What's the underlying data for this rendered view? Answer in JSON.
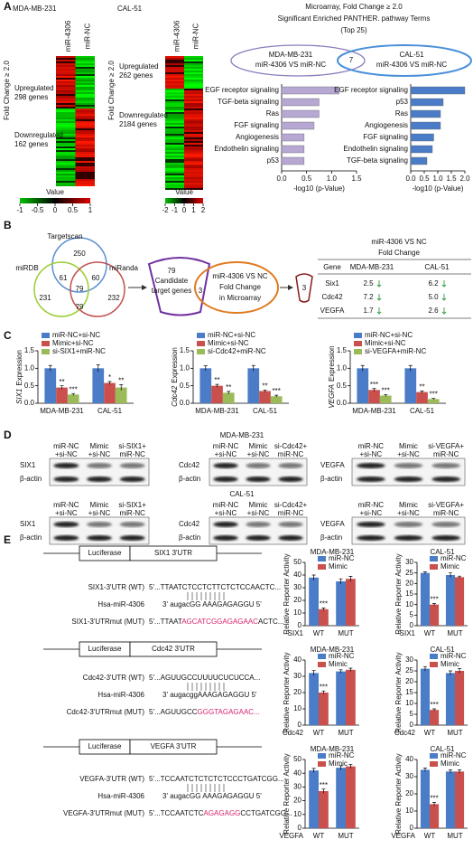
{
  "panel_labels": [
    "A",
    "B",
    "C",
    "D",
    "E"
  ],
  "heatmaps": [
    {
      "title": "MDA-MB-231",
      "side_label": "Fold Change ≥ 2.0",
      "columns": [
        "miR-4306",
        "miR-NC"
      ],
      "upregulated": [
        "Upregulated",
        "298 genes"
      ],
      "downregulated": [
        "Downregulated",
        "162 genes"
      ],
      "legend_title": "Value",
      "legend_ticks": [
        -1,
        -0.5,
        0,
        0.5,
        1
      ]
    },
    {
      "title": "CAL-51",
      "side_label": "Fold Change ≥ 2.0",
      "columns": [
        "miR-4306",
        "miR-NC"
      ],
      "upregulated": [
        "Upregulated",
        "262 genes"
      ],
      "downregulated": [
        "Downregulated",
        "2184 genes"
      ],
      "legend_title": "Value",
      "legend_ticks": [
        -2,
        -1,
        0,
        1,
        2
      ]
    }
  ],
  "pathway_header": [
    "Microarray, Fold Change ≥ 2.0",
    "Significant Enriched PANTHER. pathway Terms",
    "(Top 25)"
  ],
  "pathway_venn": {
    "left": [
      "MDA-MB-231",
      "miR-4306 VS miR-NC"
    ],
    "overlap": "7",
    "right": [
      "CAL-51",
      "miR-4306 VS miR-NC"
    ]
  },
  "target_venn": {
    "sets": [
      "Targetscan",
      "miRDB",
      "miRanda"
    ],
    "counts": [
      "250",
      "231",
      "232",
      "61",
      "60",
      "79",
      "79"
    ]
  },
  "flow": {
    "candidates": [
      "79",
      "Candidate",
      "target genes"
    ],
    "microarray": [
      "miR-4306 VS NC",
      "Fold Change",
      "in Microarray"
    ],
    "overlap": "3",
    "result": "3"
  },
  "table": {
    "header": "miR-4306 VS NC",
    "subheader": "Fold Change",
    "columns": [
      "Gene",
      "MDA-MB-231",
      "CAL-51"
    ],
    "rows": [
      [
        "Six1",
        "2.5",
        "6.2"
      ],
      [
        "Cdc42",
        "7.2",
        "5.0"
      ],
      [
        "VEGFA",
        "1.7",
        "2.6"
      ]
    ]
  },
  "blots": [
    {
      "title": "MDA-MB-231",
      "panels": [
        {
          "lanes": [
            [
              "miR-NC",
              "+si-NC"
            ],
            [
              "Mimic",
              "+si-NC"
            ],
            [
              "si-SIX1+",
              "miR-NC"
            ]
          ],
          "rows": [
            "SIX1",
            "β-actin"
          ]
        },
        {
          "lanes": [
            [
              "miR-NC",
              "+si-NC"
            ],
            [
              "Mimic",
              "+si-NC"
            ],
            [
              "si-Cdc42+",
              "miR-NC"
            ]
          ],
          "rows": [
            "Cdc42",
            "β-actin"
          ]
        },
        {
          "lanes": [
            [
              "miR-NC",
              "+si-NC"
            ],
            [
              "Mimic",
              "+si-NC"
            ],
            [
              "si-VEGFA+",
              "miR-NC"
            ]
          ],
          "rows": [
            "VEGFA",
            "β-actin"
          ]
        }
      ]
    },
    {
      "title": "CAL-51",
      "panels": [
        {
          "lanes": [
            [
              "miR-NC",
              "+si-NC"
            ],
            [
              "Mimic",
              "+si-NC"
            ],
            [
              "si-SIX1+",
              "miR-NC"
            ]
          ],
          "rows": [
            "SIX1",
            "β-actin"
          ]
        },
        {
          "lanes": [
            [
              "miR-NC",
              "+si-NC"
            ],
            [
              "Mimic",
              "+si-NC"
            ],
            [
              "si-Cdc42+",
              "miR-NC"
            ]
          ],
          "rows": [
            "Cdc42",
            "β-actin"
          ]
        },
        {
          "lanes": [
            [
              "miR-NC",
              "+si-NC"
            ],
            [
              "Mimic",
              "+si-NC"
            ],
            [
              "si-VEGFA+",
              "miR-NC"
            ]
          ],
          "rows": [
            "VEGFA",
            "β-actin"
          ]
        }
      ]
    }
  ],
  "reporters": [
    {
      "construct": [
        "Luciferase",
        "SIX1 3'UTR"
      ],
      "wt_name": "SIX1-3'UTR (WT)",
      "wt_seq": "5'...TTAATCTCCTCTTCTCTCCAACTC...",
      "mirna": "Hsa-miR-4306",
      "mirna_seq": "3' augacGG AAAGAGAGGU 5'",
      "mut_name": "SIX1-3'UTRmut (MUT)",
      "mut_seq": [
        "5'...TTAAT",
        "AGCATCGGAGAGAAC",
        "ACTC..."
      ]
    },
    {
      "construct": [
        "Luciferase",
        "Cdc42 3'UTR"
      ],
      "wt_name": "Cdc42-3'UTR (WT)",
      "wt_seq": "5'...AGUUGCCUUUUCUCUCCA...",
      "mirna": "Hsa-miR-4306",
      "mirna_seq": "3' augacggAAAGAGAGGU 5'",
      "mut_name": "Cdc42-3'UTRmut (MUT)",
      "mut_seq": [
        "5'...AGUUGCC",
        "GGGTAGAGAAC..."
      ]
    },
    {
      "construct": [
        "Luciferase",
        "VEGFA 3'UTR"
      ],
      "wt_name": "VEGFA-3'UTR (WT)",
      "wt_seq": "5'...TCCAATCTCTCTCTCCCTGATCGG...",
      "mirna": "Hsa-miR-4306",
      "mirna_seq": "3' augacGG AAAGAGAGGU 5'",
      "mut_name": "VEGFA-3'UTRmut (MUT)",
      "mut_seq": [
        "5'...TCCAATCTC",
        "AGAGAGG",
        "CCTGATCGG..."
      ]
    }
  ],
  "chart_data": [
    {
      "type": "hbar",
      "categories": [
        "EGF receptor signaling",
        "TGF-beta signaling",
        "Ras",
        "FGF signaling",
        "Angiogenesis",
        "Endothelin signaling",
        "p53"
      ],
      "values": [
        1.15,
        0.75,
        0.75,
        0.65,
        0.45,
        0.45,
        0.45
      ],
      "color": "#b6a7d3",
      "xlim": [
        0,
        1.5
      ],
      "xticks": [
        {
          "value": 0,
          "label": "0.0"
        },
        {
          "value": 0.5,
          "label": "0.5"
        },
        {
          "value": 1,
          "label": "1.0"
        },
        {
          "value": 1.5,
          "label": "1.5"
        }
      ],
      "xlabel": "-log10 (p-Value)"
    },
    {
      "type": "hbar",
      "categories": [
        "EGF receptor signaling",
        "p53",
        "Ras",
        "Angiogenesis",
        "FGF signaling",
        "Endothelin signaling",
        "TGF-beta signaling"
      ],
      "values": [
        2.0,
        1.2,
        1.1,
        1.1,
        0.85,
        0.8,
        0.6
      ],
      "color": "#4a7cc7",
      "xlim": [
        0,
        2
      ],
      "xticks": [
        {
          "value": 0,
          "label": "0.0"
        },
        {
          "value": 0.5,
          "label": "0.5"
        },
        {
          "value": 1,
          "label": "1.0"
        },
        {
          "value": 1.5,
          "label": "1.5"
        },
        {
          "value": 2,
          "label": "2.0"
        }
      ],
      "xlabel": "-log10 (p-Value)"
    },
    {
      "type": "bar",
      "ylabel": [
        "SIX1",
        "Expression"
      ],
      "categories": [
        "MDA-MB-231",
        "CAL-51"
      ],
      "ylim": [
        0,
        1.5
      ],
      "yticks": [
        {
          "value": 0,
          "label": "0.0"
        },
        {
          "value": 0.5,
          "label": "0.5"
        },
        {
          "value": 1,
          "label": "1.0"
        },
        {
          "value": 1.5,
          "label": "1.5"
        }
      ],
      "series": [
        {
          "name": "miR-NC+si-NC",
          "color": "#4a7cc7",
          "values": [
            1.0,
            1.0
          ],
          "errors": [
            0.08,
            0.1
          ]
        },
        {
          "name": "Mimic+si-NC",
          "color": "#c9504d",
          "values": [
            0.45,
            0.58
          ],
          "errors": [
            0.05,
            0.04
          ],
          "labels": [
            "**",
            "*"
          ]
        },
        {
          "name": "si-SIX1+miR-NC",
          "color": "#9bbb59",
          "values": [
            0.25,
            0.45
          ],
          "errors": [
            0.03,
            0.08
          ],
          "labels": [
            "***",
            "**"
          ]
        }
      ]
    },
    {
      "type": "bar",
      "ylabel": [
        "Cdc42",
        "Expression"
      ],
      "categories": [
        "MDA-MB-231",
        "CAL-51"
      ],
      "ylim": [
        0,
        1.5
      ],
      "yticks": [
        {
          "value": 0,
          "label": "0.0"
        },
        {
          "value": 0.5,
          "label": "0.5"
        },
        {
          "value": 1,
          "label": "1.0"
        },
        {
          "value": 1.5,
          "label": "1.5"
        }
      ],
      "series": [
        {
          "name": "miR-NC+si-NC",
          "color": "#4a7cc7",
          "values": [
            1.0,
            1.0
          ],
          "errors": [
            0.07,
            0.08
          ]
        },
        {
          "name": "Mimic+si-NC",
          "color": "#c9504d",
          "values": [
            0.5,
            0.35
          ],
          "errors": [
            0.04,
            0.03
          ],
          "labels": [
            "**",
            "**"
          ]
        },
        {
          "name": "si-Cdc42+miR-NC",
          "color": "#9bbb59",
          "values": [
            0.3,
            0.2
          ],
          "errors": [
            0.04,
            0.03
          ],
          "labels": [
            "**",
            "***"
          ]
        }
      ]
    },
    {
      "type": "bar",
      "ylabel": [
        "VEGFA",
        "Expression"
      ],
      "categories": [
        "MDA-MB-231",
        "CAL-51"
      ],
      "ylim": [
        0,
        1.5
      ],
      "yticks": [
        {
          "value": 0,
          "label": "0.0"
        },
        {
          "value": 0.5,
          "label": "0.5"
        },
        {
          "value": 1,
          "label": "1.0"
        },
        {
          "value": 1.5,
          "label": "1.5"
        }
      ],
      "series": [
        {
          "name": "miR-NC+si-NC",
          "color": "#4a7cc7",
          "values": [
            1.0,
            1.0
          ],
          "errors": [
            0.08,
            0.08
          ]
        },
        {
          "name": "Mimic+si-NC",
          "color": "#c9504d",
          "values": [
            0.38,
            0.32
          ],
          "errors": [
            0.04,
            0.03
          ],
          "labels": [
            "***",
            "**"
          ]
        },
        {
          "name": "si-VEGFA+miR-NC",
          "color": "#9bbb59",
          "values": [
            0.22,
            0.12
          ],
          "errors": [
            0.03,
            0.02
          ],
          "labels": [
            "***",
            "***"
          ]
        }
      ]
    },
    {
      "type": "bar",
      "title": "MDA-MB-231",
      "ylabel": [
        "Relative Reporter Activity"
      ],
      "gene": "SIX1",
      "categories": [
        "WT",
        "MUT"
      ],
      "ylim": [
        0,
        50
      ],
      "yticks": [
        0,
        10,
        20,
        30,
        40,
        50
      ],
      "series": [
        {
          "name": "miR-NC",
          "color": "#4a7cc7",
          "values": [
            38,
            35
          ],
          "errors": [
            2,
            2
          ]
        },
        {
          "name": "Mimic",
          "color": "#c9504d",
          "values": [
            13,
            37
          ],
          "errors": [
            1,
            2
          ],
          "labels": [
            "***",
            null
          ]
        }
      ]
    },
    {
      "type": "bar",
      "title": "CAL-51",
      "ylabel": [
        "Relative Reporter Activity"
      ],
      "gene": "SIX1",
      "categories": [
        "WT",
        "MUT"
      ],
      "ylim": [
        0,
        30
      ],
      "yticks": [
        0,
        5,
        10,
        15,
        20,
        25,
        30
      ],
      "series": [
        {
          "name": "miR-NC",
          "color": "#4a7cc7",
          "values": [
            25,
            24
          ],
          "errors": [
            0.5,
            1
          ]
        },
        {
          "name": "Mimic",
          "color": "#c9504d",
          "values": [
            10,
            23
          ],
          "errors": [
            0.5,
            0.5
          ],
          "labels": [
            "***",
            null
          ]
        }
      ]
    },
    {
      "type": "bar",
      "title": "MDA-MB-231",
      "ylabel": [
        "Relative Reporter Activity"
      ],
      "gene": "Cdc42",
      "categories": [
        "WT",
        "MUT"
      ],
      "ylim": [
        0,
        40
      ],
      "yticks": [
        0,
        10,
        20,
        30,
        40
      ],
      "series": [
        {
          "name": "miR-NC",
          "color": "#4a7cc7",
          "values": [
            32,
            33
          ],
          "errors": [
            1.5,
            1
          ]
        },
        {
          "name": "Mimic",
          "color": "#c9504d",
          "values": [
            20,
            34
          ],
          "errors": [
            1,
            1
          ],
          "labels": [
            "***",
            null
          ]
        }
      ]
    },
    {
      "type": "bar",
      "title": "CAL-51",
      "ylabel": [
        "Relative Reporter Activity"
      ],
      "gene": "Cdc42",
      "categories": [
        "WT",
        "MUT"
      ],
      "ylim": [
        0,
        30
      ],
      "yticks": [
        0,
        5,
        10,
        15,
        20,
        25,
        30
      ],
      "series": [
        {
          "name": "miR-NC",
          "color": "#4a7cc7",
          "values": [
            26,
            24
          ],
          "errors": [
            1,
            1
          ]
        },
        {
          "name": "Mimic",
          "color": "#c9504d",
          "values": [
            7,
            25
          ],
          "errors": [
            0.5,
            1
          ],
          "labels": [
            "***",
            null
          ]
        }
      ]
    },
    {
      "type": "bar",
      "title": "MDA-MB-231",
      "ylabel": [
        "Relative Reporter Activity"
      ],
      "gene": "VEGFA",
      "categories": [
        "WT",
        "MUT"
      ],
      "ylim": [
        0,
        50
      ],
      "yticks": [
        0,
        10,
        20,
        30,
        40,
        50
      ],
      "series": [
        {
          "name": "miR-NC",
          "color": "#4a7cc7",
          "values": [
            42,
            44
          ],
          "errors": [
            1.5,
            1.5
          ]
        },
        {
          "name": "Mimic",
          "color": "#c9504d",
          "values": [
            27,
            45
          ],
          "errors": [
            1.5,
            1.5
          ],
          "labels": [
            "***",
            null
          ]
        }
      ]
    },
    {
      "type": "bar",
      "title": "CAL-51",
      "ylabel": [
        "Relative Reporter Activity"
      ],
      "gene": "VEGFA",
      "categories": [
        "WT",
        "MUT"
      ],
      "ylim": [
        0,
        40
      ],
      "yticks": [
        0,
        10,
        20,
        30,
        40
      ],
      "series": [
        {
          "name": "miR-NC",
          "color": "#4a7cc7",
          "values": [
            34,
            33
          ],
          "errors": [
            1,
            1
          ]
        },
        {
          "name": "Mimic",
          "color": "#c9504d",
          "values": [
            14,
            33
          ],
          "errors": [
            1,
            1
          ],
          "labels": [
            "***",
            null
          ]
        }
      ]
    }
  ]
}
